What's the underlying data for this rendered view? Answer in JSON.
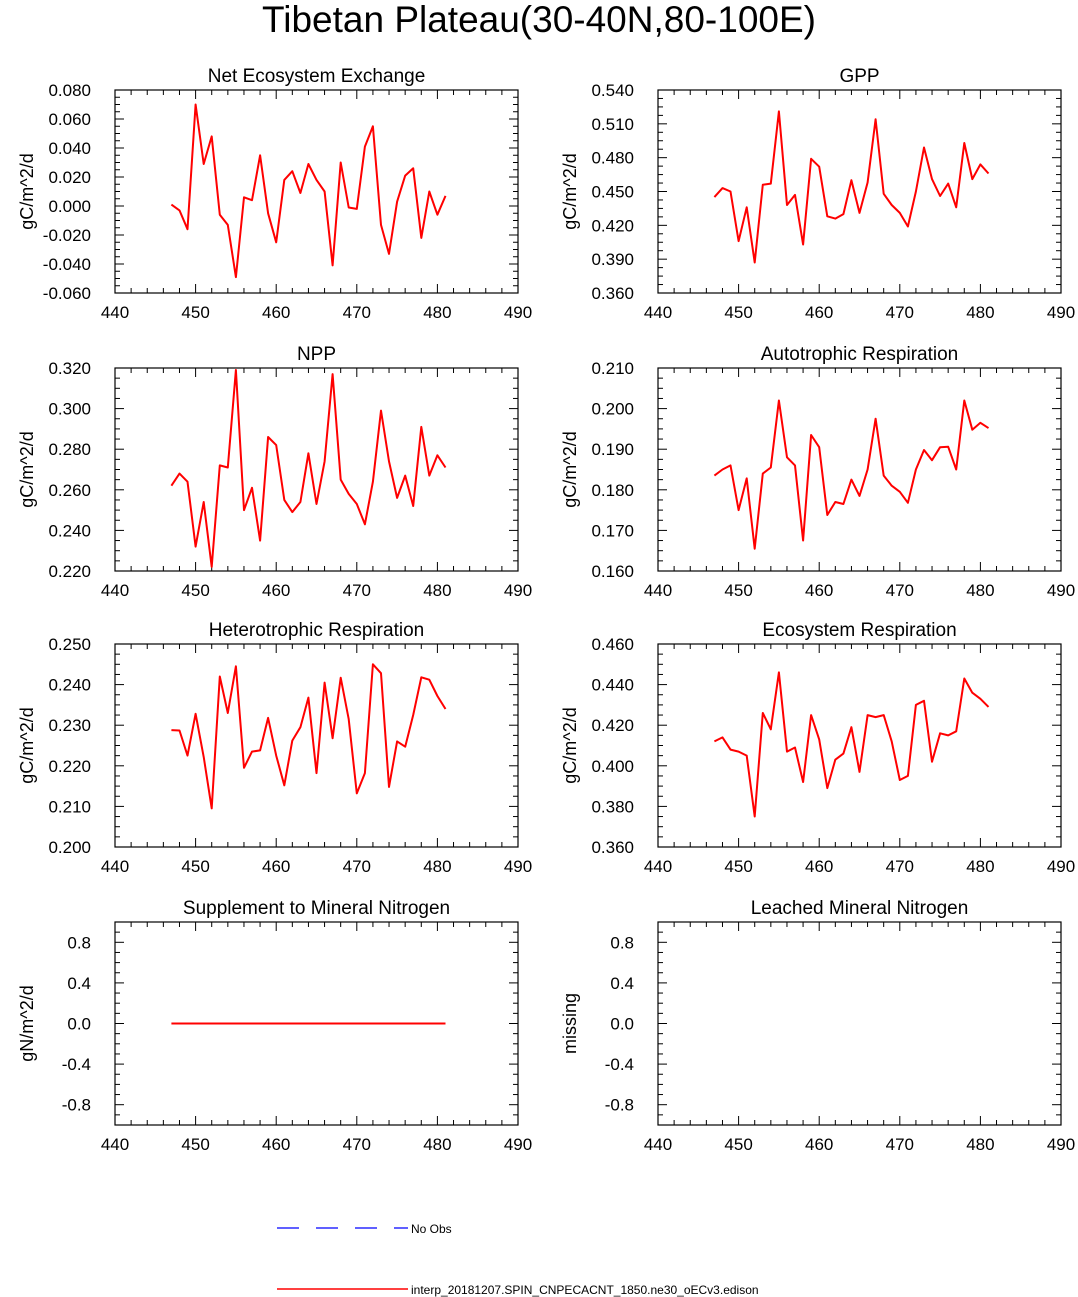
{
  "page": {
    "title": "Tibetan Plateau(30-40N,80-100E)"
  },
  "legend": {
    "entries": [
      {
        "label": "No Obs",
        "color": "#0000ff",
        "style": "dashed"
      },
      {
        "label": "interp_20181207.SPIN_CNPECACNT_1850.ne30_oECv3.edison",
        "color": "#ff0000",
        "style": "solid"
      }
    ]
  },
  "chart_data": [
    {
      "type": "line",
      "title": "Net Ecosystem Exchange",
      "ylabel": "gC/m^2/d",
      "xlabel": "",
      "xlim": [
        440,
        490
      ],
      "ylim": [
        -0.06,
        0.08
      ],
      "xticks": [
        "440",
        "450",
        "460",
        "470",
        "480",
        "490"
      ],
      "yticks": [
        "-0.060",
        "-0.040",
        "-0.020",
        "0.000",
        "0.020",
        "0.040",
        "0.060",
        "0.080"
      ],
      "color": "#ff0000",
      "x": [
        447,
        448,
        449,
        450,
        451,
        452,
        453,
        454,
        455,
        456,
        457,
        458,
        459,
        460,
        461,
        462,
        463,
        464,
        465,
        466,
        467,
        468,
        469,
        470,
        471,
        472,
        473,
        474,
        475,
        476,
        477,
        478,
        479,
        480,
        481
      ],
      "y": [
        0.001,
        -0.003,
        -0.016,
        0.07,
        0.029,
        0.048,
        -0.006,
        -0.013,
        -0.049,
        0.006,
        0.004,
        0.035,
        -0.005,
        -0.025,
        0.018,
        0.024,
        0.009,
        0.029,
        0.018,
        0.01,
        -0.041,
        0.03,
        -0.001,
        -0.002,
        0.041,
        0.055,
        -0.013,
        -0.033,
        0.003,
        0.021,
        0.026,
        -0.022,
        0.01,
        -0.006,
        0.007
      ]
    },
    {
      "type": "line",
      "title": "GPP",
      "ylabel": "gC/m^2/d",
      "xlabel": "",
      "xlim": [
        440,
        490
      ],
      "ylim": [
        0.36,
        0.54
      ],
      "xticks": [
        "440",
        "450",
        "460",
        "470",
        "480",
        "490"
      ],
      "yticks": [
        "0.360",
        "0.390",
        "0.420",
        "0.450",
        "0.480",
        "0.510",
        "0.540"
      ],
      "color": "#ff0000",
      "x": [
        447,
        448,
        449,
        450,
        451,
        452,
        453,
        454,
        455,
        456,
        457,
        458,
        459,
        460,
        461,
        462,
        463,
        464,
        465,
        466,
        467,
        468,
        469,
        470,
        471,
        472,
        473,
        474,
        475,
        476,
        477,
        478,
        479,
        480,
        481
      ],
      "y": [
        0.445,
        0.453,
        0.45,
        0.406,
        0.436,
        0.387,
        0.456,
        0.457,
        0.521,
        0.438,
        0.447,
        0.403,
        0.479,
        0.472,
        0.428,
        0.426,
        0.43,
        0.46,
        0.431,
        0.458,
        0.514,
        0.448,
        0.438,
        0.431,
        0.419,
        0.45,
        0.489,
        0.461,
        0.446,
        0.457,
        0.436,
        0.493,
        0.461,
        0.474,
        0.466
      ]
    },
    {
      "type": "line",
      "title": "NPP",
      "ylabel": "gC/m^2/d",
      "xlabel": "",
      "xlim": [
        440,
        490
      ],
      "ylim": [
        0.22,
        0.32
      ],
      "xticks": [
        "440",
        "450",
        "460",
        "470",
        "480",
        "490"
      ],
      "yticks": [
        "0.220",
        "0.240",
        "0.260",
        "0.280",
        "0.300",
        "0.320"
      ],
      "color": "#ff0000",
      "x": [
        447,
        448,
        449,
        450,
        451,
        452,
        453,
        454,
        455,
        456,
        457,
        458,
        459,
        460,
        461,
        462,
        463,
        464,
        465,
        466,
        467,
        468,
        469,
        470,
        471,
        472,
        473,
        474,
        475,
        476,
        477,
        478,
        479,
        480,
        481
      ],
      "y": [
        0.262,
        0.268,
        0.264,
        0.232,
        0.254,
        0.222,
        0.272,
        0.271,
        0.319,
        0.25,
        0.261,
        0.235,
        0.286,
        0.282,
        0.255,
        0.249,
        0.254,
        0.278,
        0.253,
        0.274,
        0.317,
        0.265,
        0.258,
        0.253,
        0.243,
        0.264,
        0.299,
        0.274,
        0.256,
        0.267,
        0.252,
        0.291,
        0.267,
        0.277,
        0.271
      ]
    },
    {
      "type": "line",
      "title": "Autotrophic Respiration",
      "ylabel": "gC/m^2/d",
      "xlabel": "",
      "xlim": [
        440,
        490
      ],
      "ylim": [
        0.16,
        0.21
      ],
      "xticks": [
        "440",
        "450",
        "460",
        "470",
        "480",
        "490"
      ],
      "yticks": [
        "0.160",
        "0.170",
        "0.180",
        "0.190",
        "0.200",
        "0.210"
      ],
      "color": "#ff0000",
      "x": [
        447,
        448,
        449,
        450,
        451,
        452,
        453,
        454,
        455,
        456,
        457,
        458,
        459,
        460,
        461,
        462,
        463,
        464,
        465,
        466,
        467,
        468,
        469,
        470,
        471,
        472,
        473,
        474,
        475,
        476,
        477,
        478,
        479,
        480,
        481
      ],
      "y": [
        0.1835,
        0.185,
        0.186,
        0.175,
        0.1828,
        0.1655,
        0.184,
        0.1855,
        0.202,
        0.188,
        0.186,
        0.1675,
        0.1935,
        0.1905,
        0.1738,
        0.177,
        0.1765,
        0.1825,
        0.1785,
        0.185,
        0.1975,
        0.1835,
        0.181,
        0.1795,
        0.1768,
        0.185,
        0.1898,
        0.1873,
        0.1905,
        0.1906,
        0.185,
        0.202,
        0.1948,
        0.1965,
        0.1952
      ]
    },
    {
      "type": "line",
      "title": "Heterotrophic Respiration",
      "ylabel": "gC/m^2/d",
      "xlabel": "",
      "xlim": [
        440,
        490
      ],
      "ylim": [
        0.2,
        0.25
      ],
      "xticks": [
        "440",
        "450",
        "460",
        "470",
        "480",
        "490"
      ],
      "yticks": [
        "0.200",
        "0.210",
        "0.220",
        "0.230",
        "0.240",
        "0.250"
      ],
      "color": "#ff0000",
      "x": [
        447,
        448,
        449,
        450,
        451,
        452,
        453,
        454,
        455,
        456,
        457,
        458,
        459,
        460,
        461,
        462,
        463,
        464,
        465,
        466,
        467,
        468,
        469,
        470,
        471,
        472,
        473,
        474,
        475,
        476,
        477,
        478,
        479,
        480,
        481
      ],
      "y": [
        0.2288,
        0.2287,
        0.2225,
        0.2328,
        0.2222,
        0.2095,
        0.242,
        0.233,
        0.2445,
        0.2195,
        0.2235,
        0.2238,
        0.2318,
        0.2225,
        0.2152,
        0.2262,
        0.2295,
        0.2368,
        0.2182,
        0.2405,
        0.2268,
        0.2417,
        0.2315,
        0.2132,
        0.2182,
        0.245,
        0.2428,
        0.2148,
        0.226,
        0.2247,
        0.2325,
        0.2418,
        0.2412,
        0.2372,
        0.234
      ]
    },
    {
      "type": "line",
      "title": "Ecosystem Respiration",
      "ylabel": "gC/m^2/d",
      "xlabel": "",
      "xlim": [
        440,
        490
      ],
      "ylim": [
        0.36,
        0.46
      ],
      "xticks": [
        "440",
        "450",
        "460",
        "470",
        "480",
        "490"
      ],
      "yticks": [
        "0.360",
        "0.380",
        "0.400",
        "0.420",
        "0.440",
        "0.460"
      ],
      "color": "#ff0000",
      "x": [
        447,
        448,
        449,
        450,
        451,
        452,
        453,
        454,
        455,
        456,
        457,
        458,
        459,
        460,
        461,
        462,
        463,
        464,
        465,
        466,
        467,
        468,
        469,
        470,
        471,
        472,
        473,
        474,
        475,
        476,
        477,
        478,
        479,
        480,
        481
      ],
      "y": [
        0.412,
        0.414,
        0.408,
        0.407,
        0.405,
        0.375,
        0.426,
        0.418,
        0.446,
        0.407,
        0.409,
        0.392,
        0.425,
        0.413,
        0.389,
        0.403,
        0.406,
        0.419,
        0.397,
        0.425,
        0.424,
        0.425,
        0.412,
        0.393,
        0.395,
        0.43,
        0.432,
        0.402,
        0.416,
        0.415,
        0.417,
        0.443,
        0.436,
        0.433,
        0.429
      ]
    },
    {
      "type": "line",
      "title": "Supplement to Mineral Nitrogen",
      "ylabel": "gN/m^2/d",
      "xlabel": "",
      "xlim": [
        440,
        490
      ],
      "ylim": [
        -1.0,
        1.0
      ],
      "xticks": [
        "440",
        "450",
        "460",
        "470",
        "480",
        "490"
      ],
      "yticks": [
        "-0.8",
        "-0.4",
        "0.0",
        "0.4",
        "0.8"
      ],
      "color": "#ff0000",
      "x": [
        447,
        481
      ],
      "y": [
        0.0,
        0.0
      ]
    },
    {
      "type": "line",
      "title": "Leached Mineral Nitrogen",
      "ylabel": "missing",
      "xlabel": "",
      "xlim": [
        440,
        490
      ],
      "ylim": [
        -1.0,
        1.0
      ],
      "xticks": [
        "440",
        "450",
        "460",
        "470",
        "480",
        "490"
      ],
      "yticks": [
        "-0.8",
        "-0.4",
        "0.0",
        "0.4",
        "0.8"
      ],
      "color": "#ff0000",
      "x": [],
      "y": []
    }
  ]
}
